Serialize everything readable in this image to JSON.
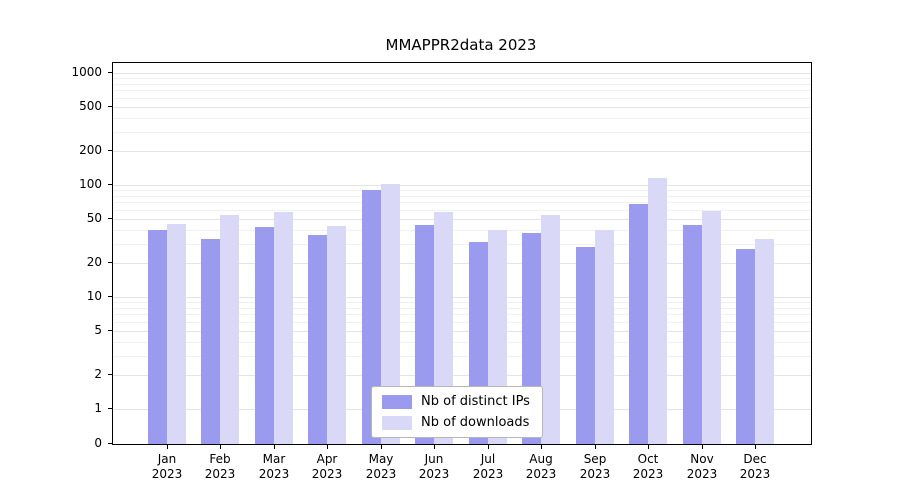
{
  "title": "MMAPPR2data 2023",
  "chart_data": {
    "type": "bar",
    "scale": "symlog",
    "title": "MMAPPR2data 2023",
    "xlabel": "",
    "ylabel": "",
    "ylim": [
      0,
      1000
    ],
    "yticks": [
      0,
      1,
      2,
      5,
      10,
      20,
      50,
      100,
      200,
      500,
      1000
    ],
    "grid": "on",
    "legend_position": "bottom-center",
    "categories": [
      "Jan 2023",
      "Feb 2023",
      "Mar 2023",
      "Apr 2023",
      "May 2023",
      "Jun 2023",
      "Jul 2023",
      "Aug 2023",
      "Sep 2023",
      "Oct 2023",
      "Nov 2023",
      "Dec 2023"
    ],
    "series": [
      {
        "name": "Nb of distinct IPs",
        "color": "#9a9aee",
        "values": [
          40,
          33,
          42,
          36,
          90,
          44,
          31,
          37,
          28,
          68,
          44,
          27
        ]
      },
      {
        "name": "Nb of downloads",
        "color": "#d9d9f7",
        "values": [
          45,
          54,
          57,
          43,
          103,
          57,
          40,
          54,
          40,
          115,
          59,
          33
        ]
      }
    ]
  }
}
